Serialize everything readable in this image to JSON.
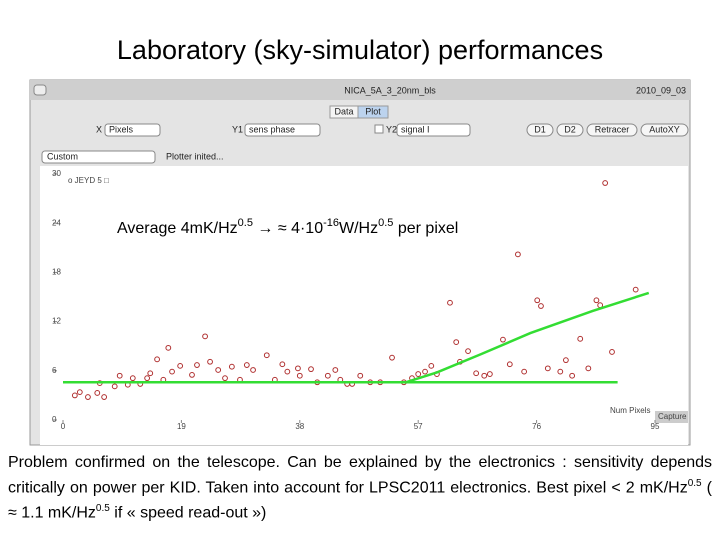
{
  "slide_title": "Laboratory (sky-simulator) performances",
  "window": {
    "title": "NICA_5A_3_20nm_bls",
    "date": "2010_09_03",
    "tabs": [
      "Data",
      "Plot"
    ],
    "controls": {
      "x_label": "X",
      "x_select": "Pixels",
      "y1_label": "Y1",
      "y1_select": "sens phase",
      "y2_label": "Y2",
      "y2_select": "signal I",
      "buttons": [
        "D1",
        "D2",
        "Retracer",
        "AutoXY"
      ],
      "mode_select": "Custom",
      "status": "Plotter inited..."
    },
    "capture": "Capture"
  },
  "chart_data": {
    "type": "scatter",
    "xlabel": "Num Pixels",
    "legend_label": "o JEYD 5 □",
    "annotation": [
      "Average 4mK/Hz",
      "0.5",
      " → ≈ 4·10",
      "-16",
      "W/Hz",
      "0.5",
      " per pixel"
    ],
    "xlim": [
      0,
      95
    ],
    "xticks": [
      0,
      19,
      38,
      57,
      76,
      95
    ],
    "ylim": [
      0,
      30
    ],
    "yticks": [
      0,
      6,
      12,
      18,
      24,
      30
    ],
    "series": [
      {
        "color": "#b03030",
        "x": [
          1.9,
          2.7,
          4.0,
          5.5,
          5.9,
          6.6,
          8.3,
          9.1,
          10.4,
          11.2,
          12.4,
          13.5,
          14.0,
          15.1,
          16.1,
          16.9,
          17.5,
          18.8,
          20.7,
          21.5,
          22.8,
          23.6,
          24.9,
          26.0,
          27.1,
          28.4,
          29.5,
          30.5,
          32.7,
          34.0,
          35.2,
          36.0,
          37.7,
          38.0,
          39.8,
          40.8,
          42.5,
          43.7,
          44.5,
          45.6,
          46.4,
          47.7,
          49.3,
          50.9,
          52.8,
          54.7,
          56.0,
          57.0,
          58.1,
          59.1,
          60.0,
          62.1,
          63.1,
          63.7,
          65.0,
          66.3,
          67.6,
          68.5,
          70.6,
          71.7,
          73.0,
          74.0,
          76.1,
          76.7,
          77.8,
          79.8,
          80.7,
          81.7,
          83.0,
          84.3,
          85.6,
          86.2,
          87.0,
          88.1,
          91.9
        ],
        "values": [
          3.0,
          3.4,
          2.8,
          3.3,
          4.5,
          2.8,
          4.1,
          5.4,
          4.3,
          5.1,
          4.4,
          5.1,
          5.7,
          7.4,
          4.9,
          8.8,
          5.9,
          6.6,
          5.5,
          6.7,
          10.2,
          7.1,
          6.1,
          5.1,
          6.5,
          4.9,
          6.7,
          6.1,
          7.9,
          4.9,
          6.8,
          5.9,
          6.3,
          5.4,
          6.2,
          4.6,
          5.4,
          6.1,
          4.9,
          4.4,
          4.4,
          5.4,
          4.6,
          4.6,
          7.6,
          4.6,
          5.1,
          5.6,
          5.9,
          6.6,
          5.6,
          14.3,
          9.5,
          7.1,
          8.4,
          5.7,
          5.4,
          5.6,
          9.8,
          6.8,
          20.2,
          5.9,
          14.6,
          13.9,
          6.3,
          5.9,
          7.3,
          5.4,
          9.9,
          6.3,
          14.6,
          14.0,
          28.9,
          8.3,
          15.9
        ]
      }
    ],
    "fits": [
      {
        "color": "#33dd33",
        "x": [
          0,
          89
        ],
        "values": [
          4.6,
          4.6
        ]
      },
      {
        "color": "#33dd33",
        "x": [
          55,
          60,
          67,
          75,
          85,
          94
        ],
        "values": [
          4.6,
          5.8,
          8.0,
          10.6,
          13.3,
          15.5
        ]
      }
    ]
  },
  "caption": [
    "Problem confirmed on the telescope. Can be explained by the electronics : sensitivity depends critically on power per KID. Taken into account for LPSC2011 electronics. Best pixel < 2 mK/Hz",
    "0.5",
    " ( ≈ 1.1 mK/Hz",
    "0.5",
    " if « speed read-out »)"
  ]
}
